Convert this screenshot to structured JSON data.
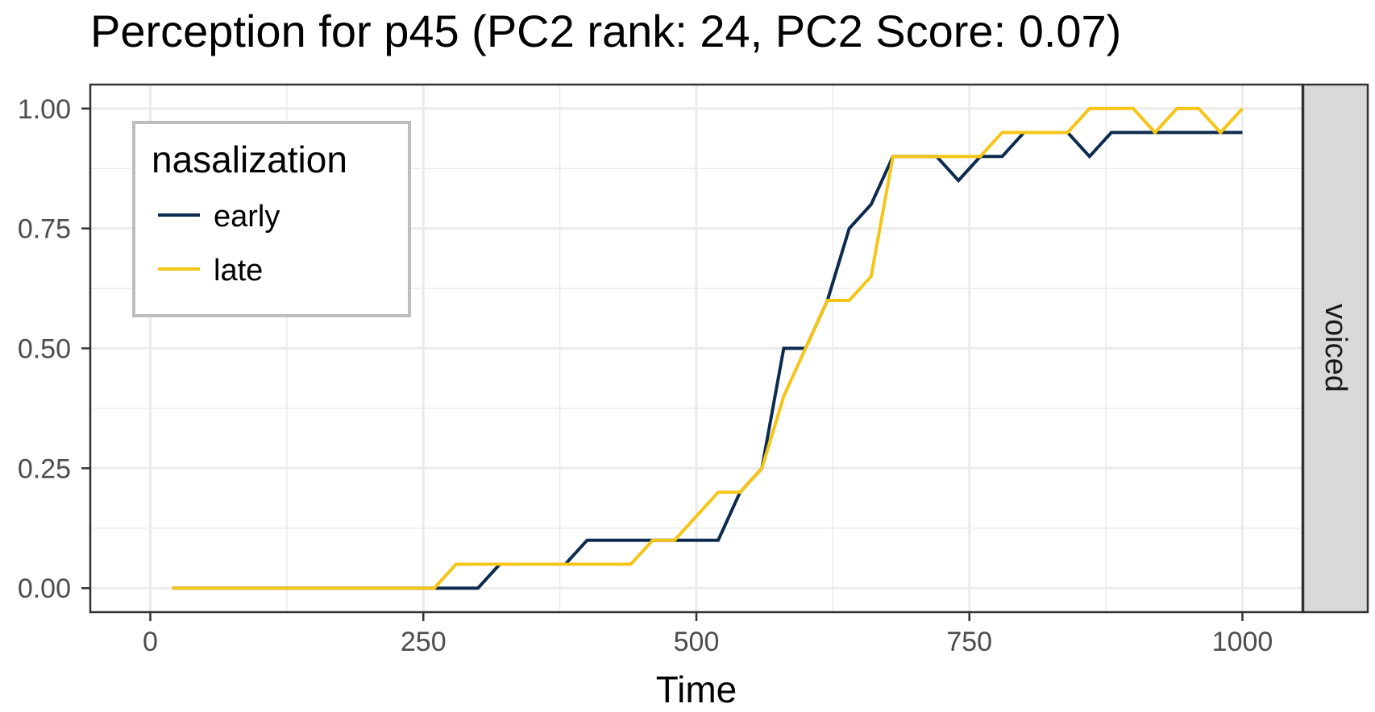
{
  "chart_data": {
    "type": "line",
    "title": "Perception for p45 (PC2 rank: 24, PC2 Score: 0.07)",
    "xlabel": "Time",
    "ylabel": "",
    "facet_label": "voiced",
    "xlim": [
      -55,
      1055
    ],
    "ylim": [
      -0.05,
      1.05
    ],
    "x_ticks": [
      0,
      250,
      500,
      750,
      1000
    ],
    "x_tick_labels": [
      "0",
      "250",
      "500",
      "750",
      "1000"
    ],
    "y_ticks": [
      0,
      0.25,
      0.5,
      0.75,
      1.0
    ],
    "y_tick_labels": [
      "0.00",
      "0.25",
      "0.50",
      "0.75",
      "1.00"
    ],
    "grid": true,
    "legend": {
      "title": "nasalization",
      "position": "top-left"
    },
    "x": [
      20,
      40,
      60,
      80,
      100,
      120,
      140,
      160,
      180,
      200,
      220,
      240,
      260,
      280,
      300,
      320,
      340,
      360,
      380,
      400,
      420,
      440,
      460,
      480,
      500,
      520,
      540,
      560,
      580,
      600,
      620,
      640,
      660,
      680,
      700,
      720,
      740,
      760,
      780,
      800,
      820,
      840,
      860,
      880,
      900,
      920,
      940,
      960,
      980,
      1000
    ],
    "series": [
      {
        "name": "early",
        "color": "#0d2b4e",
        "values": [
          0,
          0,
          0,
          0,
          0,
          0,
          0,
          0,
          0,
          0,
          0,
          0,
          0,
          0,
          0,
          0.05,
          0.05,
          0.05,
          0.05,
          0.1,
          0.1,
          0.1,
          0.1,
          0.1,
          0.1,
          0.1,
          0.2,
          0.25,
          0.5,
          0.5,
          0.6,
          0.75,
          0.8,
          0.9,
          0.9,
          0.9,
          0.85,
          0.9,
          0.9,
          0.95,
          0.95,
          0.95,
          0.9,
          0.95,
          0.95,
          0.95,
          0.95,
          0.95,
          0.95,
          0.95
        ]
      },
      {
        "name": "late",
        "color": "#f5c518",
        "values": [
          0,
          0,
          0,
          0,
          0,
          0,
          0,
          0,
          0,
          0,
          0,
          0,
          0,
          0.05,
          0.05,
          0.05,
          0.05,
          0.05,
          0.05,
          0.05,
          0.05,
          0.05,
          0.1,
          0.1,
          0.15,
          0.2,
          0.2,
          0.25,
          0.4,
          0.5,
          0.6,
          0.6,
          0.65,
          0.9,
          0.9,
          0.9,
          0.9,
          0.9,
          0.95,
          0.95,
          0.95,
          0.95,
          1.0,
          1.0,
          1.0,
          0.95,
          1.0,
          1.0,
          0.95,
          1.0
        ]
      }
    ]
  }
}
